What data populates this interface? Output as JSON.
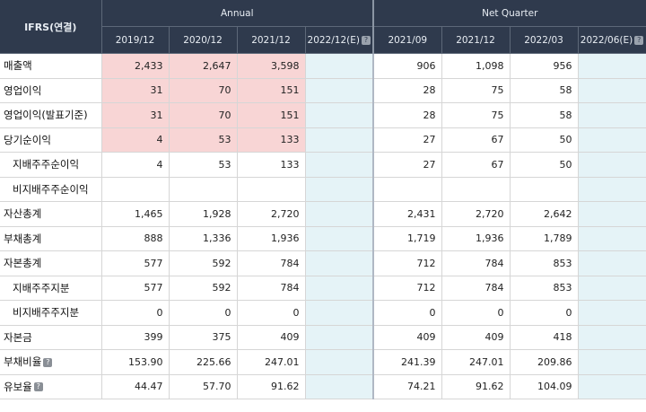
{
  "header": {
    "corner": "IFRS(연결)",
    "annual": "Annual",
    "quarter": "Net Quarter",
    "annual_cols": [
      "2019/12",
      "2020/12",
      "2021/12",
      "2022/12(E)"
    ],
    "quarter_cols": [
      "2021/09",
      "2021/12",
      "2022/03",
      "2022/06(E)"
    ],
    "help_glyph": "?"
  },
  "rows": [
    {
      "label": "매출액",
      "v": [
        "2,433",
        "2,647",
        "3,598",
        "",
        "906",
        "1,098",
        "956",
        ""
      ]
    },
    {
      "label": "영업이익",
      "v": [
        "31",
        "70",
        "151",
        "",
        "28",
        "75",
        "58",
        ""
      ]
    },
    {
      "label": "영업이익(발표기준)",
      "v": [
        "31",
        "70",
        "151",
        "",
        "28",
        "75",
        "58",
        ""
      ]
    },
    {
      "label": "당기순이익",
      "v": [
        "4",
        "53",
        "133",
        "",
        "27",
        "67",
        "50",
        ""
      ]
    },
    {
      "label": "지배주주순이익",
      "v": [
        "4",
        "53",
        "133",
        "",
        "27",
        "67",
        "50",
        ""
      ]
    },
    {
      "label": "비지배주주순이익",
      "v": [
        "",
        "",
        "",
        "",
        "",
        "",
        "",
        ""
      ]
    },
    {
      "label": "자산총계",
      "v": [
        "1,465",
        "1,928",
        "2,720",
        "",
        "2,431",
        "2,720",
        "2,642",
        ""
      ]
    },
    {
      "label": "부채총계",
      "v": [
        "888",
        "1,336",
        "1,936",
        "",
        "1,719",
        "1,936",
        "1,789",
        ""
      ]
    },
    {
      "label": "자본총계",
      "v": [
        "577",
        "592",
        "784",
        "",
        "712",
        "784",
        "853",
        ""
      ]
    },
    {
      "label": "지배주주지분",
      "v": [
        "577",
        "592",
        "784",
        "",
        "712",
        "784",
        "853",
        ""
      ]
    },
    {
      "label": "비지배주주지분",
      "v": [
        "0",
        "0",
        "0",
        "",
        "0",
        "0",
        "0",
        ""
      ]
    },
    {
      "label": "자본금",
      "v": [
        "399",
        "375",
        "409",
        "",
        "409",
        "409",
        "418",
        ""
      ]
    },
    {
      "label": "부채비율",
      "v": [
        "153.90",
        "225.66",
        "247.01",
        "",
        "241.39",
        "247.01",
        "209.86",
        ""
      ]
    },
    {
      "label": "유보율",
      "v": [
        "44.47",
        "57.70",
        "91.62",
        "",
        "74.21",
        "91.62",
        "104.09",
        ""
      ]
    }
  ],
  "colors": {
    "header_bg": "#2f3a4d",
    "highlight": "#f8d5d5",
    "estimate_bg": "#e5f3f7"
  }
}
